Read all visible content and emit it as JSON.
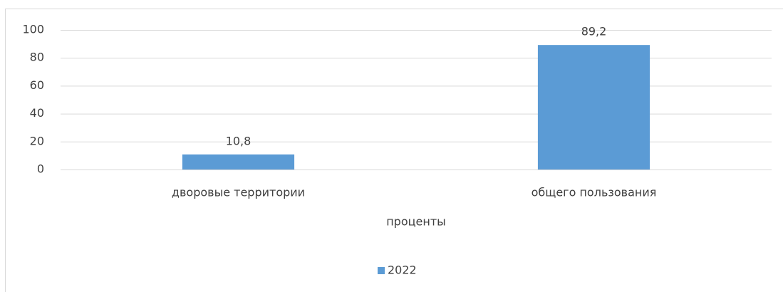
{
  "chart_data": {
    "type": "bar",
    "categories": [
      "дворовые территории",
      "общего пользования"
    ],
    "series": [
      {
        "name": "2022",
        "color": "#5b9bd5",
        "values": [
          10.8,
          89.2
        ],
        "value_labels": [
          "10,8",
          "89,2"
        ]
      }
    ],
    "xlabel": "проценты",
    "ylim": [
      0,
      100
    ],
    "yticks": [
      0,
      20,
      40,
      60,
      80,
      100
    ],
    "grid": true,
    "legend": "bottom"
  }
}
